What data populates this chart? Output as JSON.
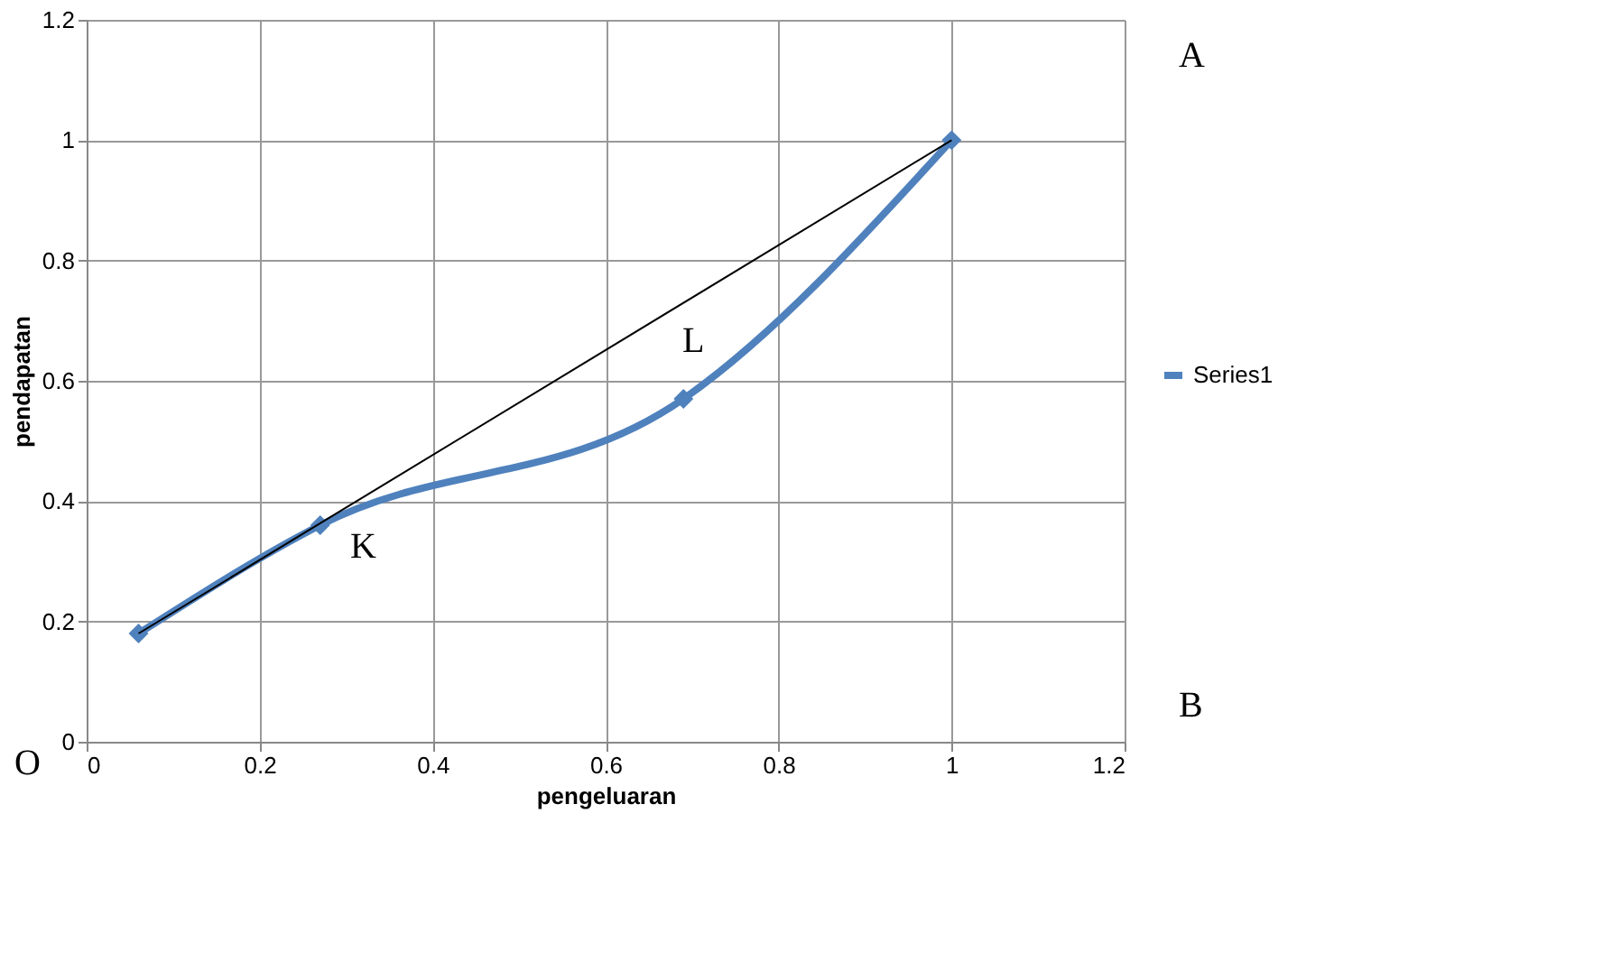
{
  "chart_data": {
    "type": "line",
    "xlabel": "pengeluaran",
    "ylabel": "pendapatan",
    "x": [
      0.06,
      0.27,
      0.69,
      1.0
    ],
    "series": [
      {
        "name": "Series1",
        "color": "#4f81bd",
        "values": [
          0.18,
          0.36,
          0.57,
          1.0
        ],
        "marker": "diamond"
      },
      {
        "type": "line",
        "color": "#000000",
        "x": [
          0.06,
          1.0
        ],
        "values": [
          0.18,
          1.0
        ],
        "marker": "none"
      }
    ],
    "xlim": [
      0,
      1.2
    ],
    "xticks": [
      0,
      0.2,
      0.4,
      0.6,
      0.8,
      1,
      1.2
    ],
    "ylim": [
      0,
      1.2
    ],
    "yticks": [
      0,
      0.2,
      0.4,
      0.6,
      0.8,
      1,
      1.2
    ],
    "grid": true,
    "legend": "right",
    "annotations": [
      "K",
      "L",
      "A",
      "B",
      "O"
    ]
  }
}
